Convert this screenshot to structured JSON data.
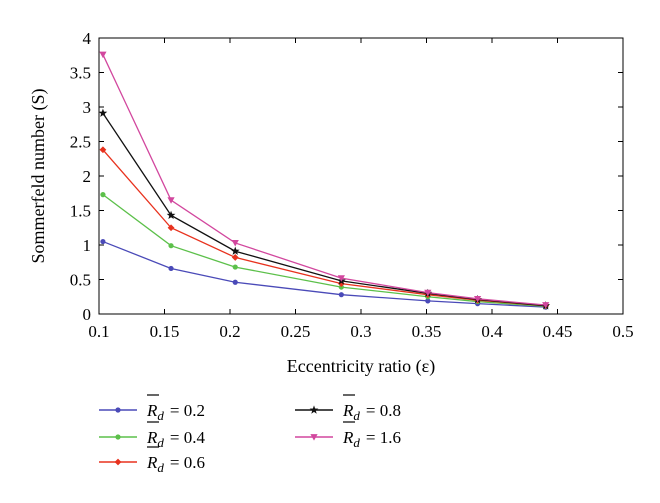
{
  "chart_data": {
    "type": "line",
    "xlabel": "Eccentricity ratio (ε)",
    "ylabel": "Sommerfeld number (S)",
    "xlim": [
      0.1,
      0.5
    ],
    "ylim": [
      0,
      4
    ],
    "xticks": [
      "0.1",
      "0.15",
      "0.2",
      "0.25",
      "0.3",
      "0.35",
      "0.4",
      "0.45",
      "0.5"
    ],
    "yticks": [
      "0",
      "0.5",
      "1",
      "1.5",
      "2",
      "2.5",
      "3",
      "3.5",
      "4"
    ],
    "grid": false,
    "legend_placement": "bottom",
    "x": [
      0.103,
      0.155,
      0.204,
      0.285,
      0.351,
      0.389,
      0.441
    ],
    "series": [
      {
        "name": "R̄d = 0.2",
        "legend_symbol": "R",
        "legend_value": "= 0.2",
        "color": "#4a4ab8",
        "marker": "dot",
        "values": [
          1.05,
          0.66,
          0.46,
          0.28,
          0.19,
          0.15,
          0.1
        ]
      },
      {
        "name": "R̄d = 0.4",
        "legend_symbol": "R",
        "legend_value": "= 0.4",
        "color": "#5cc04a",
        "marker": "dot",
        "values": [
          1.73,
          0.99,
          0.68,
          0.39,
          0.25,
          0.18,
          0.11
        ]
      },
      {
        "name": "R̄d = 0.6",
        "legend_symbol": "R",
        "legend_value": "= 0.6",
        "color": "#e8321e",
        "marker": "diamond",
        "values": [
          2.38,
          1.25,
          0.82,
          0.44,
          0.28,
          0.2,
          0.12
        ]
      },
      {
        "name": "R̄d = 0.8",
        "legend_symbol": "R",
        "legend_value": "= 0.8",
        "color": "#111111",
        "marker": "star",
        "values": [
          2.91,
          1.43,
          0.91,
          0.48,
          0.3,
          0.21,
          0.12
        ]
      },
      {
        "name": "R̄d = 1.6",
        "legend_symbol": "R",
        "legend_value": "= 1.6",
        "color": "#d2479e",
        "marker": "triangle",
        "values": [
          3.76,
          1.65,
          1.03,
          0.52,
          0.31,
          0.22,
          0.13
        ]
      }
    ]
  }
}
